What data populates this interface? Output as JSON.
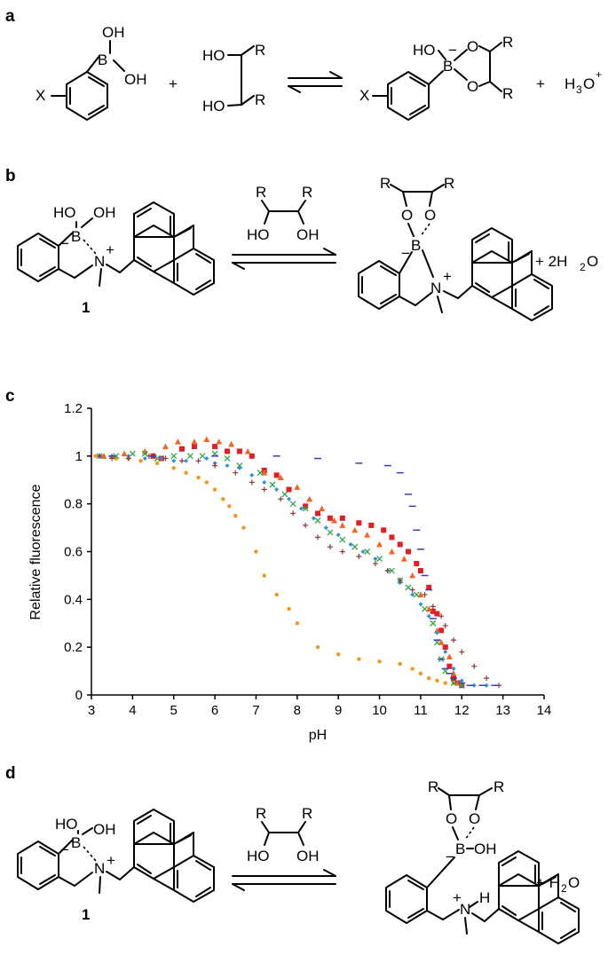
{
  "panels": {
    "a": "a",
    "b": "b",
    "c": "c",
    "d": "d"
  },
  "atoms": {
    "OH": "OH",
    "HO": "HO",
    "O": "O",
    "B": "B",
    "N": "N",
    "X": "X",
    "R": "R",
    "H": "H",
    "minus": "−",
    "plus": "+",
    "H3O_main": "H",
    "H3O_sub": "3",
    "H3O_O": "O",
    "H3O_plus": "+",
    "two_water_prefix": "+ 2H",
    "water_sub": "2",
    "water_O": "O",
    "water_prefix": "+ H"
  },
  "compound_label": "1",
  "chart_data": {
    "type": "scatter",
    "title": "",
    "xlabel": "pH",
    "ylabel": "Relative fluorescence",
    "xlim": [
      3,
      14
    ],
    "ylim": [
      0,
      1.2
    ],
    "xticks": [
      3,
      4,
      5,
      6,
      7,
      8,
      9,
      10,
      11,
      12,
      13,
      14
    ],
    "yticks": [
      0,
      0.2,
      0.4,
      0.6,
      0.8,
      1,
      1.2
    ],
    "ytick_labels": [
      "0",
      "0.2",
      "0.4",
      "0.6",
      "0.8",
      "1",
      "1.2"
    ],
    "grid": false,
    "legend": "none",
    "series": [
      {
        "marker": "circle-small",
        "color": "#f7941d",
        "points": [
          [
            3.1,
            1.0
          ],
          [
            3.3,
            1.0
          ],
          [
            3.6,
            0.99
          ],
          [
            3.9,
            0.99
          ],
          [
            4.2,
            0.98
          ],
          [
            4.6,
            0.97
          ],
          [
            5.0,
            0.95
          ],
          [
            5.3,
            0.93
          ],
          [
            5.6,
            0.91
          ],
          [
            5.8,
            0.89
          ],
          [
            6.0,
            0.86
          ],
          [
            6.2,
            0.82
          ],
          [
            6.35,
            0.79
          ],
          [
            6.5,
            0.75
          ],
          [
            6.7,
            0.7
          ],
          [
            7.0,
            0.6
          ],
          [
            7.2,
            0.5
          ],
          [
            7.5,
            0.42
          ],
          [
            7.8,
            0.36
          ],
          [
            8.0,
            0.3
          ],
          [
            8.5,
            0.2
          ],
          [
            9.0,
            0.17
          ],
          [
            9.5,
            0.15
          ],
          [
            10.0,
            0.14
          ],
          [
            10.5,
            0.13
          ],
          [
            10.8,
            0.11
          ],
          [
            11.0,
            0.09
          ],
          [
            11.2,
            0.07
          ],
          [
            11.4,
            0.06
          ],
          [
            11.6,
            0.05
          ],
          [
            11.8,
            0.05
          ]
        ]
      },
      {
        "marker": "square",
        "color": "#e31d24",
        "points": [
          [
            4.5,
            1.0
          ],
          [
            4.7,
            0.99
          ],
          [
            5.2,
            1.03
          ],
          [
            5.5,
            1.04
          ],
          [
            6.0,
            1.04
          ],
          [
            6.3,
            1.02
          ],
          [
            6.6,
            1.02
          ],
          [
            6.9,
            1.0
          ],
          [
            7.2,
            0.94
          ],
          [
            7.5,
            0.92
          ],
          [
            7.8,
            0.86
          ],
          [
            8.2,
            0.79
          ],
          [
            8.5,
            0.76
          ],
          [
            8.8,
            0.74
          ],
          [
            9.1,
            0.74
          ],
          [
            9.5,
            0.72
          ],
          [
            9.8,
            0.71
          ],
          [
            10.1,
            0.69
          ],
          [
            10.3,
            0.66
          ],
          [
            10.5,
            0.63
          ],
          [
            10.7,
            0.6
          ],
          [
            10.9,
            0.55
          ],
          [
            11.0,
            0.52
          ],
          [
            11.2,
            0.45
          ],
          [
            11.3,
            0.35
          ],
          [
            11.4,
            0.34
          ],
          [
            11.5,
            0.27
          ],
          [
            11.6,
            0.2
          ],
          [
            11.7,
            0.12
          ],
          [
            11.8,
            0.07
          ],
          [
            11.9,
            0.05
          ],
          [
            12.0,
            0.04
          ]
        ]
      },
      {
        "marker": "triangle",
        "color": "#f26522",
        "points": [
          [
            3.3,
            1.0
          ],
          [
            3.5,
            1.0
          ],
          [
            3.8,
            1.01
          ],
          [
            4.3,
            1.02
          ],
          [
            4.8,
            1.04
          ],
          [
            5.1,
            1.06
          ],
          [
            5.5,
            1.06
          ],
          [
            5.8,
            1.07
          ],
          [
            6.1,
            1.06
          ],
          [
            6.4,
            1.05
          ],
          [
            6.8,
            1.02
          ],
          [
            7.2,
            0.93
          ],
          [
            7.6,
            0.91
          ],
          [
            8.0,
            0.87
          ],
          [
            8.3,
            0.82
          ],
          [
            8.6,
            0.78
          ],
          [
            8.9,
            0.73
          ],
          [
            9.1,
            0.71
          ],
          [
            9.4,
            0.69
          ],
          [
            9.7,
            0.67
          ],
          [
            10.0,
            0.63
          ],
          [
            10.3,
            0.6
          ],
          [
            10.6,
            0.57
          ],
          [
            10.8,
            0.5
          ],
          [
            11.0,
            0.42
          ],
          [
            11.2,
            0.36
          ],
          [
            11.4,
            0.27
          ],
          [
            11.5,
            0.22
          ],
          [
            11.7,
            0.16
          ],
          [
            11.8,
            0.09
          ],
          [
            11.9,
            0.05
          ]
        ]
      },
      {
        "marker": "x",
        "color": "#2aa84a",
        "points": [
          [
            3.2,
            1.0
          ],
          [
            3.6,
            1.0
          ],
          [
            4.0,
            1.01
          ],
          [
            4.3,
            1.01
          ],
          [
            4.6,
            0.99
          ],
          [
            5.0,
            1.0
          ],
          [
            5.4,
            1.0
          ],
          [
            5.7,
            1.0
          ],
          [
            6.0,
            1.01
          ],
          [
            6.3,
            0.99
          ],
          [
            6.6,
            0.96
          ],
          [
            7.1,
            0.93
          ],
          [
            7.4,
            0.88
          ],
          [
            7.7,
            0.84
          ],
          [
            7.9,
            0.8
          ],
          [
            8.2,
            0.78
          ],
          [
            8.5,
            0.73
          ],
          [
            8.8,
            0.68
          ],
          [
            9.1,
            0.65
          ],
          [
            9.4,
            0.62
          ],
          [
            9.7,
            0.6
          ],
          [
            10.0,
            0.57
          ],
          [
            10.3,
            0.52
          ],
          [
            10.5,
            0.48
          ],
          [
            10.7,
            0.45
          ],
          [
            10.9,
            0.42
          ],
          [
            11.1,
            0.36
          ],
          [
            11.3,
            0.3
          ],
          [
            11.4,
            0.22
          ],
          [
            11.5,
            0.15
          ],
          [
            11.6,
            0.1
          ],
          [
            11.8,
            0.05
          ],
          [
            12.0,
            0.04
          ]
        ]
      },
      {
        "marker": "diamond-small",
        "color": "#2f8fd8",
        "points": [
          [
            3.2,
            1.0
          ],
          [
            3.5,
            1.0
          ],
          [
            3.9,
            1.0
          ],
          [
            4.3,
            0.99
          ],
          [
            4.7,
            0.99
          ],
          [
            5.0,
            0.98
          ],
          [
            5.3,
            0.98
          ],
          [
            5.8,
            0.99
          ],
          [
            6.0,
            0.97
          ],
          [
            6.3,
            0.96
          ],
          [
            6.6,
            0.95
          ],
          [
            6.9,
            0.92
          ],
          [
            7.2,
            0.89
          ],
          [
            7.5,
            0.86
          ],
          [
            7.8,
            0.82
          ],
          [
            8.1,
            0.78
          ],
          [
            8.4,
            0.74
          ],
          [
            8.7,
            0.7
          ],
          [
            9.0,
            0.67
          ],
          [
            9.3,
            0.63
          ],
          [
            9.6,
            0.6
          ],
          [
            9.9,
            0.57
          ],
          [
            10.2,
            0.52
          ],
          [
            10.5,
            0.47
          ],
          [
            10.8,
            0.42
          ],
          [
            11.0,
            0.38
          ],
          [
            11.2,
            0.33
          ],
          [
            11.4,
            0.26
          ],
          [
            11.6,
            0.18
          ],
          [
            11.8,
            0.11
          ],
          [
            12.0,
            0.06
          ],
          [
            12.3,
            0.04
          ],
          [
            12.6,
            0.04
          ]
        ]
      },
      {
        "marker": "plus",
        "color": "#8b3a3a",
        "points": [
          [
            3.2,
            1.0
          ],
          [
            3.5,
            0.99
          ],
          [
            3.9,
            0.99
          ],
          [
            4.4,
            1.0
          ],
          [
            4.8,
            0.99
          ],
          [
            5.2,
            0.98
          ],
          [
            5.6,
            0.98
          ],
          [
            6.0,
            0.96
          ],
          [
            6.5,
            0.93
          ],
          [
            6.9,
            0.89
          ],
          [
            7.2,
            0.86
          ],
          [
            7.6,
            0.82
          ],
          [
            7.9,
            0.76
          ],
          [
            8.2,
            0.71
          ],
          [
            8.5,
            0.66
          ],
          [
            8.8,
            0.62
          ],
          [
            9.1,
            0.6
          ],
          [
            9.5,
            0.58
          ],
          [
            9.9,
            0.55
          ],
          [
            10.2,
            0.52
          ],
          [
            10.5,
            0.48
          ],
          [
            10.8,
            0.44
          ],
          [
            11.1,
            0.42
          ],
          [
            11.3,
            0.37
          ],
          [
            11.5,
            0.33
          ],
          [
            11.6,
            0.29
          ],
          [
            11.8,
            0.23
          ],
          [
            12.0,
            0.18
          ],
          [
            12.3,
            0.12
          ],
          [
            12.6,
            0.07
          ],
          [
            12.9,
            0.04
          ]
        ]
      },
      {
        "marker": "dash",
        "color": "#3a3fb5",
        "points": [
          [
            3.5,
            1.0
          ],
          [
            4.5,
            1.0
          ],
          [
            6.0,
            1.0
          ],
          [
            7.5,
            1.0
          ],
          [
            8.5,
            0.99
          ],
          [
            9.5,
            0.97
          ],
          [
            10.2,
            0.96
          ],
          [
            10.5,
            0.93
          ],
          [
            10.7,
            0.84
          ],
          [
            10.8,
            0.79
          ],
          [
            10.9,
            0.69
          ],
          [
            11.0,
            0.61
          ],
          [
            11.1,
            0.5
          ],
          [
            11.2,
            0.44
          ],
          [
            11.3,
            0.32
          ],
          [
            11.4,
            0.23
          ],
          [
            11.5,
            0.15
          ],
          [
            11.6,
            0.11
          ],
          [
            11.7,
            0.09
          ],
          [
            11.8,
            0.07
          ],
          [
            12.0,
            0.05
          ],
          [
            12.2,
            0.04
          ],
          [
            12.5,
            0.04
          ],
          [
            12.8,
            0.04
          ]
        ]
      }
    ]
  }
}
